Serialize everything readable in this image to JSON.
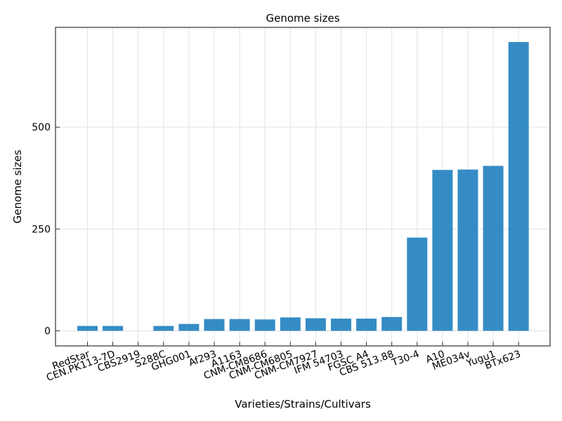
{
  "chart_data": {
    "type": "bar",
    "title": "Genome sizes",
    "xlabel": "Varieties/Strains/Cultivars",
    "ylabel": "Genome sizes",
    "categories": [
      "RedStar",
      "CEN.PK113-7D",
      "CBS2919",
      "S288C",
      "GHG001",
      "Af293",
      "A1163",
      "CNM-CM8686",
      "CNM-CM6805",
      "CNM-CM7927",
      "IFM 54703",
      "FGSC A4",
      "CBS 513.88",
      "T30-4",
      "A10",
      "ME034v",
      "Yugu1",
      "BTx623"
    ],
    "values": [
      12,
      12,
      0,
      12,
      17,
      29,
      29,
      28,
      33,
      31,
      30,
      30,
      34,
      229,
      395,
      396,
      405,
      709
    ],
    "ylim": [
      -37,
      745
    ],
    "yticks": [
      0,
      250,
      500
    ],
    "ytick_labels": [
      "0",
      "250",
      "500"
    ],
    "grid": true,
    "bar_color": "#1f7fbf"
  }
}
